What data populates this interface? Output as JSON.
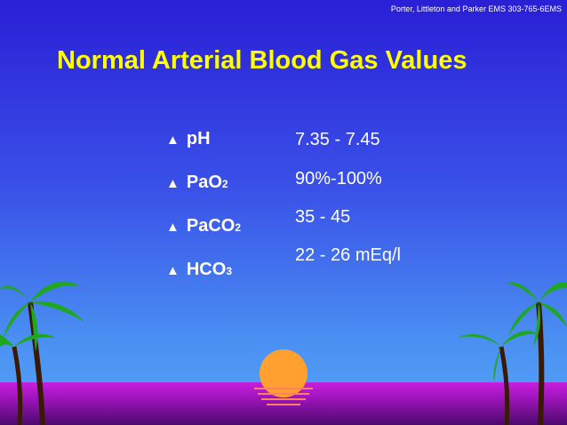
{
  "credit": "Porter, Littleton and Parker EMS 303-765-6EMS",
  "title": "Normal Arterial Blood Gas Values",
  "bullet_glyph": "triangle-bullet-icon",
  "params": [
    {
      "name": "pH",
      "sub": ""
    },
    {
      "name": "PaO",
      "sub": "2"
    },
    {
      "name": "PaCO",
      "sub": "2"
    },
    {
      "name": "HCO",
      "sub": "3"
    }
  ],
  "values": [
    "7.35 - 7.45",
    "90%-100%",
    "35 - 45",
    "22 - 26 mEq/l"
  ],
  "colors": {
    "title": "#ffff00",
    "text": "#ffffff",
    "sun": "#ffa030",
    "ground": "#c81fe0"
  },
  "decorations": [
    "palm-tree-icon",
    "sunset-icon"
  ]
}
